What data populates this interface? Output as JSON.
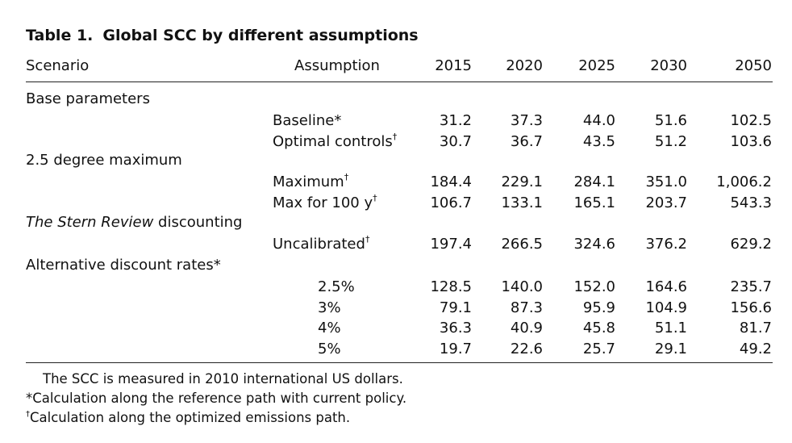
{
  "table": {
    "number": "Table 1.",
    "caption": "Global SCC by different assumptions",
    "header": {
      "scenario": "Scenario",
      "assumption": "Assumption",
      "years": [
        "2015",
        "2020",
        "2025",
        "2030",
        "2050"
      ]
    },
    "groups": [
      {
        "label": "Base parameters",
        "label_italic": "",
        "rows": [
          {
            "assumption": "Baseline",
            "mark": "*",
            "values": [
              "31.2",
              "37.3",
              "44.0",
              "51.6",
              "102.5"
            ]
          },
          {
            "assumption": "Optimal controls",
            "mark": "†",
            "values": [
              "30.7",
              "36.7",
              "43.5",
              "51.2",
              "103.6"
            ]
          }
        ]
      },
      {
        "label": "2.5 degree maximum",
        "label_italic": "",
        "rows": [
          {
            "assumption": "Maximum",
            "mark": "†",
            "values": [
              "184.4",
              "229.1",
              "284.1",
              "351.0",
              "1,006.2"
            ]
          },
          {
            "assumption": "Max for 100 y",
            "mark": "†",
            "values": [
              "106.7",
              "133.1",
              "165.1",
              "203.7",
              "543.3"
            ]
          }
        ]
      },
      {
        "label": " discounting",
        "label_italic": "The Stern Review",
        "rows": [
          {
            "assumption": "Uncalibrated",
            "mark": "†",
            "values": [
              "197.4",
              "266.5",
              "324.6",
              "376.2",
              "629.2"
            ]
          }
        ]
      },
      {
        "label": "Alternative discount rates*",
        "label_italic": "",
        "rows": [
          {
            "assumption": "2.5%",
            "mark": "",
            "values": [
              "128.5",
              "140.0",
              "152.0",
              "164.6",
              "235.7"
            ]
          },
          {
            "assumption": "3%",
            "mark": "",
            "values": [
              "79.1",
              "87.3",
              "95.9",
              "104.9",
              "156.6"
            ]
          },
          {
            "assumption": "4%",
            "mark": "",
            "values": [
              "36.3",
              "40.9",
              "45.8",
              "51.1",
              "81.7"
            ]
          },
          {
            "assumption": "5%",
            "mark": "",
            "values": [
              "19.7",
              "22.6",
              "25.7",
              "29.1",
              "49.2"
            ]
          }
        ]
      }
    ],
    "notes": [
      {
        "mark": "",
        "text": "The SCC is measured in 2010 international US dollars."
      },
      {
        "mark": "",
        "text": "*Calculation along the reference path with current policy."
      },
      {
        "mark": "†",
        "text": "Calculation along the optimized emissions path."
      }
    ]
  }
}
